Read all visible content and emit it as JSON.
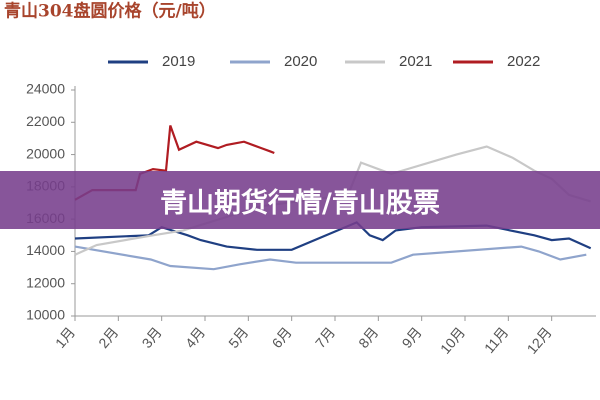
{
  "chart_data": {
    "type": "line",
    "title": "青山304盘圆价格（元/吨）",
    "xlim": [
      0,
      12
    ],
    "xticks": [
      {
        "value": 0,
        "label": "1月"
      },
      {
        "value": 1,
        "label": "2月"
      },
      {
        "value": 2,
        "label": "3月"
      },
      {
        "value": 3,
        "label": "4月"
      },
      {
        "value": 4,
        "label": "5月"
      },
      {
        "value": 5,
        "label": "6月"
      },
      {
        "value": 6,
        "label": "7月"
      },
      {
        "value": 7,
        "label": "8月"
      },
      {
        "value": 8,
        "label": "9月"
      },
      {
        "value": 9,
        "label": "10月"
      },
      {
        "value": 10,
        "label": "11月"
      },
      {
        "value": 11,
        "label": "12月"
      }
    ],
    "ylim": [
      10000,
      24000
    ],
    "yticks": [
      10000,
      12000,
      14000,
      16000,
      18000,
      20000,
      22000,
      24000
    ],
    "grid": false,
    "series": [
      {
        "name": "2019",
        "color": "#1f3f82",
        "x": [
          0,
          1.7,
          2.0,
          2.6,
          2.9,
          3.5,
          4.2,
          5.0,
          6.5,
          6.8,
          7.1,
          7.4,
          8.0,
          9.5,
          10.6,
          11.0,
          11.4,
          11.9
        ],
        "values": [
          14800,
          15000,
          15500,
          15000,
          14700,
          14300,
          14100,
          14100,
          15800,
          15000,
          14700,
          15300,
          15500,
          15600,
          15000,
          14700,
          14800,
          14200
        ]
      },
      {
        "name": "2020",
        "color": "#8fa4cc",
        "x": [
          0,
          1.75,
          2.2,
          3.2,
          3.8,
          4.5,
          5.1,
          7.3,
          7.8,
          10.3,
          10.7,
          11.2,
          11.8
        ],
        "values": [
          14300,
          13500,
          13100,
          12900,
          13200,
          13500,
          13300,
          13300,
          13800,
          14300,
          14000,
          13500,
          13800
        ]
      },
      {
        "name": "2021",
        "color": "#c8c8c8",
        "x": [
          0,
          0.5,
          1.8,
          2.5,
          4.3,
          6.3,
          6.6,
          7.3,
          8.8,
          9.5,
          10.1,
          10.6,
          11.0,
          11.4,
          11.9
        ],
        "values": [
          13800,
          14400,
          15000,
          15300,
          16800,
          17500,
          19500,
          18800,
          20000,
          20500,
          19800,
          19000,
          18500,
          17500,
          17100
        ]
      },
      {
        "name": "2022",
        "color": "#b01c22",
        "x": [
          0,
          0.4,
          1.4,
          1.5,
          1.8,
          2.1,
          2.2,
          2.4,
          2.8,
          3.3,
          3.5,
          3.9,
          4.3,
          4.5,
          4.6
        ],
        "values": [
          17200,
          17800,
          17800,
          18800,
          19100,
          19000,
          21800,
          20300,
          20800,
          20400,
          20600,
          20800,
          20400,
          20200,
          20100
        ]
      }
    ]
  },
  "banner": "青山期货行情/青山股票"
}
